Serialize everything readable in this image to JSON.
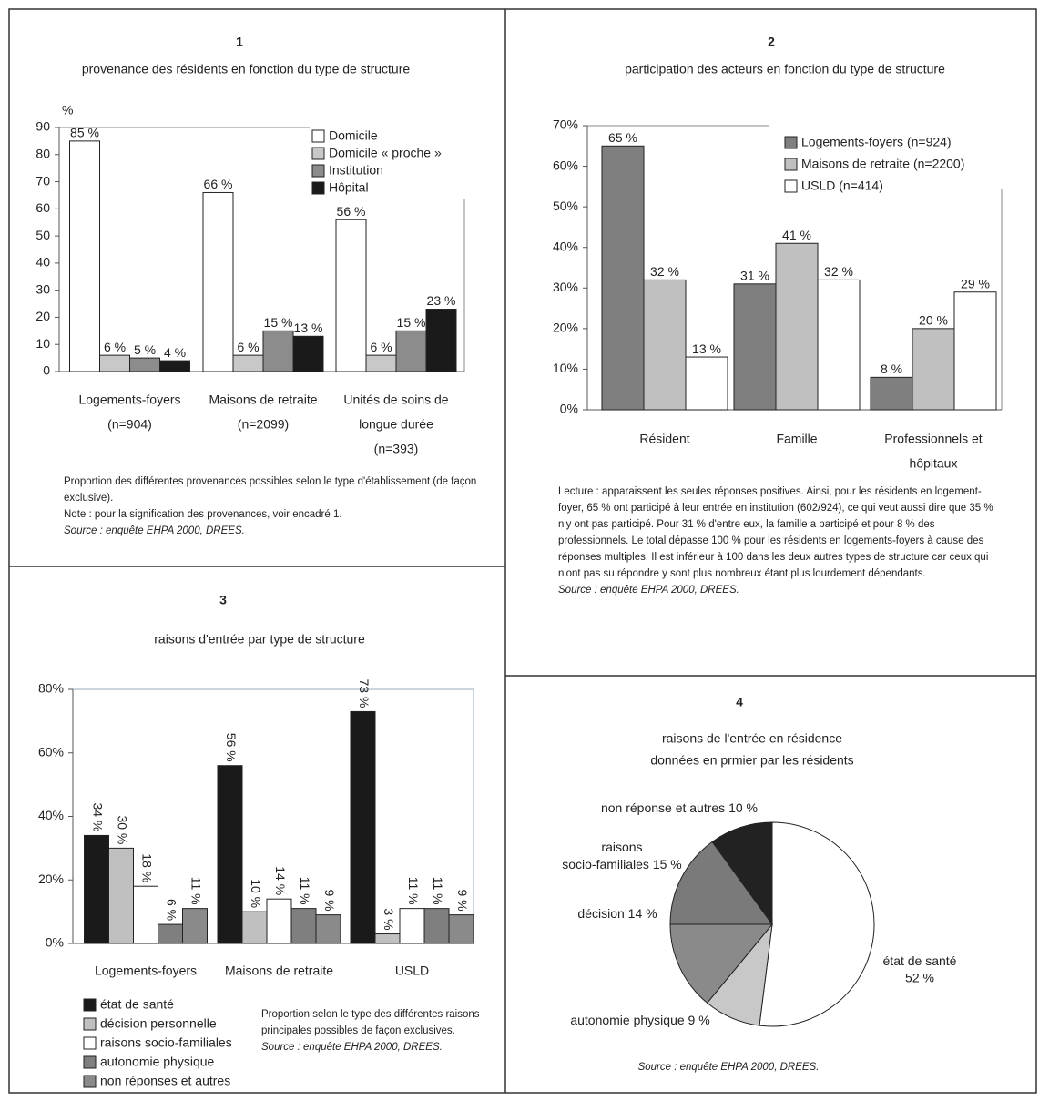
{
  "chart_data": [
    {
      "type": "bar",
      "number": "1",
      "title": "provenance des résidents en fonction du type de structure",
      "y_label": "%",
      "categories": [
        [
          "Logements-foyers",
          "(n=904)"
        ],
        [
          "Maisons de retraite",
          "(n=2099)"
        ],
        [
          "Unités de soins de",
          "longue durée",
          "(n=393)"
        ]
      ],
      "ylim": [
        0,
        90
      ],
      "yticks": [
        0,
        10,
        20,
        30,
        40,
        50,
        60,
        70,
        80,
        90
      ],
      "series": [
        {
          "name": "Domicile",
          "color": "#ffffff",
          "values": [
            85,
            66,
            56
          ],
          "value_labels": [
            "85 %",
            "66 %",
            "56 %"
          ]
        },
        {
          "name": "Domicile « proche »",
          "color": "#c8c8c8",
          "values": [
            6,
            6,
            6
          ],
          "value_labels": [
            "6 %",
            "6 %",
            "6 %"
          ]
        },
        {
          "name": "Institution",
          "color": "#8c8c8c",
          "values": [
            5,
            15,
            15
          ],
          "value_labels": [
            "5 %",
            "15 %",
            "15 %"
          ]
        },
        {
          "name": "Hôpital",
          "color": "#1a1a1a",
          "values": [
            4,
            13,
            23
          ],
          "value_labels": [
            "4 %",
            "13 %",
            "23 %"
          ]
        }
      ],
      "notes": [
        "Proportion des différentes provenances possibles selon le type d'établissement (de façon exclusive).",
        "Note : pour la signification des provenances, voir encadré 1."
      ],
      "source": "Source : enquête EHPA 2000, DREES."
    },
    {
      "type": "bar",
      "number": "2",
      "title": "participation des acteurs en fonction du type de structure",
      "categories": [
        [
          "Résident"
        ],
        [
          "Famille"
        ],
        [
          "Professionnels et",
          "hôpitaux"
        ]
      ],
      "ylim": [
        0,
        70
      ],
      "yticks": [
        {
          "value": 0,
          "label": "0%"
        },
        {
          "value": 10,
          "label": "10%"
        },
        {
          "value": 20,
          "label": "20%"
        },
        {
          "value": 30,
          "label": "30%"
        },
        {
          "value": 40,
          "label": "40%"
        },
        {
          "value": 50,
          "label": "50%"
        },
        {
          "value": 60,
          "label": "60%"
        },
        {
          "value": 70,
          "label": "70%"
        }
      ],
      "series": [
        {
          "name": "Logements-foyers (n=924)",
          "color": "#7f7f7f",
          "values": [
            65,
            31,
            8
          ],
          "value_labels": [
            "65 %",
            "31 %",
            "8 %"
          ]
        },
        {
          "name": "Maisons de retraite (n=2200)",
          "color": "#c0c0c0",
          "values": [
            32,
            41,
            20
          ],
          "value_labels": [
            "32 %",
            "41 %",
            "20 %"
          ]
        },
        {
          "name": "USLD (n=414)",
          "color": "#ffffff",
          "values": [
            13,
            32,
            29
          ],
          "value_labels": [
            "13 %",
            "32 %",
            "29 %"
          ]
        }
      ],
      "notes": [
        "Lecture : apparaissent les seules réponses positives. Ainsi, pour les résidents en logement-foyer, 65 % ont participé à leur entrée en institution (602/924), ce qui veut aussi dire que 35 % n'y ont pas participé. Pour 31 % d'entre eux, la famille a participé et pour 8 % des professionnels. Le total dépasse 100 % pour les résidents en logements-foyers à cause des réponses multiples. Il est inférieur à 100 dans les deux autres types de structure car ceux qui n'ont pas su répondre y sont plus nombreux étant plus lourdement dépendants."
      ],
      "source": "Source : enquête EHPA 2000, DREES."
    },
    {
      "type": "bar",
      "number": "3",
      "title": "raisons d'entrée par type de structure",
      "categories": [
        [
          "Logements-foyers"
        ],
        [
          "Maisons de retraite"
        ],
        [
          "USLD"
        ]
      ],
      "ylim": [
        0,
        80
      ],
      "yticks": [
        {
          "value": 0,
          "label": "0%"
        },
        {
          "value": 20,
          "label": "20%"
        },
        {
          "value": 40,
          "label": "40%"
        },
        {
          "value": 60,
          "label": "60%"
        },
        {
          "value": 80,
          "label": "80%"
        }
      ],
      "series": [
        {
          "name": "état de santé",
          "color": "#1a1a1a",
          "values": [
            34,
            56,
            73
          ],
          "value_labels": [
            "34 %",
            "56 %",
            "73 %"
          ]
        },
        {
          "name": "décision personnelle",
          "color": "#c0c0c0",
          "values": [
            30,
            10,
            3
          ],
          "value_labels": [
            "30 %",
            "10 %",
            "3 %"
          ]
        },
        {
          "name": "raisons socio-familiales",
          "color": "#ffffff",
          "values": [
            18,
            14,
            11
          ],
          "value_labels": [
            "18 %",
            "14 %",
            "11 %"
          ]
        },
        {
          "name": "autonomie physique",
          "color": "#7f7f7f",
          "values": [
            6,
            11,
            11
          ],
          "value_labels": [
            "6 %",
            "11 %",
            "11 %"
          ]
        },
        {
          "name": "non réponses et autres",
          "color": "#8a8a8a",
          "values": [
            11,
            9,
            9
          ],
          "value_labels": [
            "11 %",
            "9 %",
            "9 %"
          ]
        }
      ],
      "notes": [
        "Proportion selon le type des différentes raisons principales possibles de façon exclusives."
      ],
      "source": "Source : enquête EHPA 2000, DREES."
    },
    {
      "type": "pie",
      "number": "4",
      "title": [
        "raisons de l'entrée en résidence",
        "données en prmier par les résidents"
      ],
      "categories": [
        [
          "état de santé"
        ],
        [
          "autonomie physique"
        ],
        [
          "décision"
        ],
        [
          "raisons",
          "socio-familiales"
        ],
        [
          "non réponse et autres"
        ]
      ],
      "values": [
        52,
        9,
        14,
        15,
        10
      ],
      "value_labels": [
        "52 %",
        "9 %",
        "14 %",
        "15 %",
        "10 %"
      ],
      "colors": [
        "#ffffff",
        "#c8c8c8",
        "#8a8a8a",
        "#7a7a7a",
        "#222222"
      ],
      "notes": [],
      "source": "Source : enquête EHPA 2000, DREES."
    }
  ]
}
